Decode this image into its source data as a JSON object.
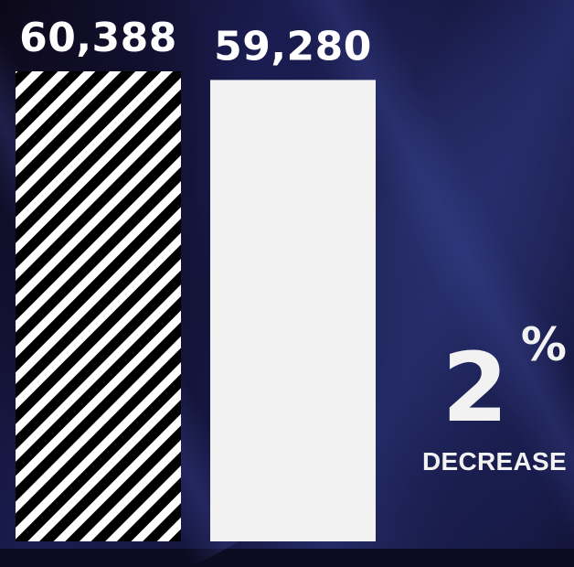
{
  "chart_data": {
    "type": "bar",
    "values": [
      60388,
      59280
    ],
    "data_labels": [
      "60,388",
      "59,280"
    ],
    "ylim": [
      0,
      60388
    ],
    "grid": false,
    "series_styles": [
      "white-diagonal-stripes",
      "solid"
    ],
    "bar_colors": [
      "#ffffff",
      "#f2f2f2"
    ]
  },
  "change": {
    "number": "2",
    "unit": "%",
    "caption": "DECREASE"
  }
}
